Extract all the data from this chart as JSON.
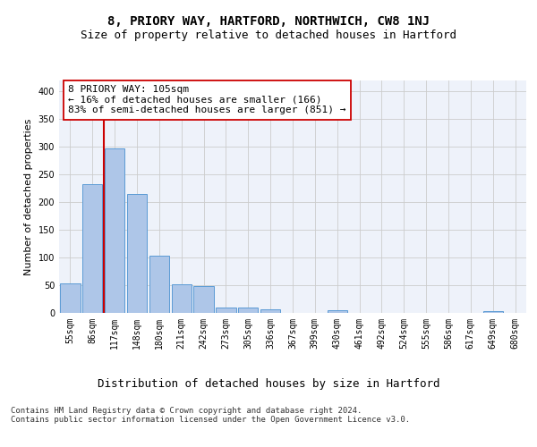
{
  "title1": "8, PRIORY WAY, HARTFORD, NORTHWICH, CW8 1NJ",
  "title2": "Size of property relative to detached houses in Hartford",
  "xlabel": "Distribution of detached houses by size in Hartford",
  "ylabel": "Number of detached properties",
  "bar_labels": [
    "55sqm",
    "86sqm",
    "117sqm",
    "148sqm",
    "180sqm",
    "211sqm",
    "242sqm",
    "273sqm",
    "305sqm",
    "336sqm",
    "367sqm",
    "399sqm",
    "430sqm",
    "461sqm",
    "492sqm",
    "524sqm",
    "555sqm",
    "586sqm",
    "617sqm",
    "649sqm",
    "680sqm"
  ],
  "bar_values": [
    53,
    232,
    298,
    215,
    104,
    52,
    49,
    10,
    9,
    6,
    0,
    0,
    5,
    0,
    0,
    0,
    0,
    0,
    0,
    3,
    0
  ],
  "bar_color": "#aec6e8",
  "bar_edgecolor": "#5b9bd5",
  "vline_x": 1.5,
  "vline_color": "#cc0000",
  "annotation_text": "8 PRIORY WAY: 105sqm\n← 16% of detached houses are smaller (166)\n83% of semi-detached houses are larger (851) →",
  "annotation_box_color": "white",
  "annotation_box_edgecolor": "#cc0000",
  "ylim": [
    0,
    420
  ],
  "yticks": [
    0,
    50,
    100,
    150,
    200,
    250,
    300,
    350,
    400
  ],
  "grid_color": "#cccccc",
  "background_color": "#eef2fa",
  "footer_text": "Contains HM Land Registry data © Crown copyright and database right 2024.\nContains public sector information licensed under the Open Government Licence v3.0.",
  "title1_fontsize": 10,
  "title2_fontsize": 9,
  "xlabel_fontsize": 9,
  "ylabel_fontsize": 8,
  "tick_fontsize": 7,
  "annotation_fontsize": 8,
  "footer_fontsize": 6.5
}
